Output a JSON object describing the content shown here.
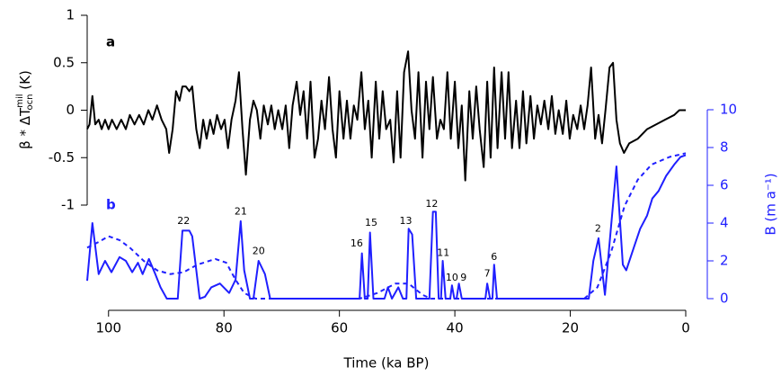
{
  "chart_data": [
    {
      "type": "line",
      "panel": "a",
      "ylabel": "β * ΔT",
      "ylabel_sup": "mil",
      "ylabel_sub": "ocn",
      "ylabel_unit": " (K)",
      "xlim": [
        103.7,
        0
      ],
      "ylim": [
        -1,
        1
      ],
      "yticks": [
        -1,
        -0.5,
        0,
        0.5,
        1
      ],
      "series": [
        {
          "color": "#000000",
          "x": [
            103.7,
            103.3,
            102.8,
            102.3,
            101.7,
            101.2,
            100.6,
            100.0,
            99.4,
            98.6,
            97.8,
            97.0,
            96.3,
            95.5,
            94.7,
            93.9,
            93.1,
            92.4,
            91.6,
            90.8,
            90.0,
            89.5,
            88.9,
            88.3,
            87.7,
            87.2,
            86.6,
            86.0,
            85.5,
            84.8,
            84.2,
            83.6,
            83.0,
            82.4,
            81.8,
            81.2,
            80.5,
            79.9,
            79.3,
            78.7,
            78.0,
            77.4,
            76.8,
            76.2,
            75.5,
            74.9,
            74.3,
            73.7,
            73.1,
            72.4,
            71.8,
            71.2,
            70.6,
            69.9,
            69.3,
            68.7,
            68.1,
            67.4,
            66.8,
            66.2,
            65.6,
            65.0,
            64.3,
            63.7,
            63.1,
            62.5,
            61.8,
            61.2,
            60.6,
            60.0,
            59.3,
            58.7,
            58.1,
            57.5,
            56.9,
            56.2,
            55.6,
            55.0,
            54.4,
            53.7,
            53.1,
            52.5,
            51.9,
            51.2,
            50.6,
            50.0,
            49.4,
            48.8,
            48.1,
            47.5,
            46.9,
            46.3,
            45.6,
            45.0,
            44.4,
            43.8,
            43.1,
            42.5,
            41.9,
            41.3,
            40.7,
            40.0,
            39.4,
            38.8,
            38.2,
            37.5,
            36.9,
            36.3,
            35.7,
            35.0,
            34.4,
            33.8,
            33.2,
            32.6,
            31.9,
            31.3,
            30.7,
            30.1,
            29.4,
            28.8,
            28.2,
            27.6,
            26.9,
            26.3,
            25.7,
            25.1,
            24.5,
            23.8,
            23.2,
            22.6,
            22.0,
            21.3,
            20.7,
            20.1,
            19.5,
            18.8,
            18.2,
            17.6,
            17.0,
            16.4,
            15.7,
            15.1,
            14.5,
            13.9,
            13.2,
            12.6,
            12.0,
            11.4,
            10.7,
            9.8,
            8.3,
            6.7,
            5.1,
            3.6,
            2.0,
            1.1,
            0
          ],
          "values": [
            -0.2,
            -0.15,
            0.15,
            -0.15,
            -0.1,
            -0.2,
            -0.1,
            -0.2,
            -0.1,
            -0.2,
            -0.1,
            -0.2,
            -0.05,
            -0.15,
            -0.05,
            -0.15,
            0.0,
            -0.1,
            0.05,
            -0.1,
            -0.2,
            -0.45,
            -0.2,
            0.2,
            0.1,
            0.25,
            0.25,
            0.2,
            0.25,
            -0.2,
            -0.4,
            -0.1,
            -0.3,
            -0.1,
            -0.25,
            -0.05,
            -0.2,
            -0.1,
            -0.4,
            -0.1,
            0.1,
            0.4,
            -0.2,
            -0.68,
            -0.1,
            0.1,
            0.0,
            -0.3,
            0.05,
            -0.15,
            0.05,
            -0.2,
            0.0,
            -0.2,
            0.05,
            -0.4,
            0.05,
            0.3,
            -0.05,
            0.2,
            -0.3,
            0.3,
            -0.5,
            -0.3,
            0.1,
            -0.2,
            0.35,
            -0.2,
            -0.5,
            0.2,
            -0.3,
            0.1,
            -0.3,
            0.05,
            -0.1,
            0.4,
            -0.2,
            0.1,
            -0.5,
            0.3,
            -0.3,
            0.2,
            -0.2,
            -0.1,
            -0.55,
            0.2,
            -0.5,
            0.4,
            0.62,
            0.0,
            -0.3,
            0.4,
            -0.5,
            0.3,
            -0.2,
            0.35,
            -0.3,
            -0.1,
            -0.2,
            0.4,
            -0.3,
            0.3,
            -0.4,
            0.05,
            -0.74,
            0.2,
            -0.3,
            0.25,
            -0.2,
            -0.6,
            0.3,
            -0.5,
            0.45,
            -0.4,
            0.4,
            -0.3,
            0.4,
            -0.4,
            0.1,
            -0.4,
            0.2,
            -0.35,
            0.15,
            -0.3,
            0.05,
            -0.15,
            0.1,
            -0.2,
            0.15,
            -0.25,
            0.0,
            -0.25,
            0.1,
            -0.3,
            -0.05,
            -0.2,
            0.05,
            -0.2,
            0.05,
            0.45,
            -0.3,
            -0.05,
            -0.35,
            0.0,
            0.45,
            0.5,
            -0.1,
            -0.35,
            -0.45,
            -0.35,
            -0.3,
            -0.2,
            -0.15,
            -0.1,
            -0.05,
            0.0,
            0.0
          ]
        }
      ]
    },
    {
      "type": "line",
      "panel": "b",
      "xlabel": "Time (ka BP)",
      "ylabel": "B (m a⁻¹)",
      "xlim": [
        103.7,
        0
      ],
      "xticks": [
        100,
        80,
        60,
        40,
        20,
        0
      ],
      "ylim": [
        0,
        10
      ],
      "yticks": [
        0,
        2,
        4,
        6,
        8,
        10
      ],
      "series": [
        {
          "color": "#1f1fff",
          "dashed": false,
          "x": [
            103.7,
            102.8,
            101.7,
            100.6,
            99.5,
            98.1,
            97.0,
            95.9,
            94.9,
            94.1,
            93.0,
            91.9,
            91.0,
            89.9,
            88.0,
            87.2,
            86.0,
            85.5,
            84.2,
            83.3,
            82.2,
            80.7,
            79.1,
            78.0,
            77.1,
            76.5,
            75.5,
            74.9,
            74.0,
            72.9,
            72.0,
            56.5,
            56.1,
            55.6,
            55.1,
            54.7,
            54.1,
            52.2,
            51.6,
            50.9,
            49.8,
            49.0,
            48.4,
            48.0,
            47.4,
            46.7,
            44.4,
            43.8,
            43.3,
            42.8,
            42.4,
            42.1,
            41.6,
            40.8,
            40.5,
            40.1,
            39.7,
            39.3,
            38.8,
            34.7,
            34.4,
            33.9,
            33.5,
            33.2,
            32.7,
            16.8,
            16.0,
            15.1,
            14.0,
            12.0,
            10.9,
            10.3,
            9.0,
            7.9,
            6.7,
            5.8,
            4.7,
            3.4,
            2.0,
            0.9,
            0
          ],
          "values": [
            0.95,
            4.0,
            1.3,
            2.0,
            1.4,
            2.2,
            2.0,
            1.4,
            1.9,
            1.3,
            2.1,
            1.3,
            0.6,
            0,
            0,
            3.6,
            3.6,
            3.3,
            0,
            0.1,
            0.6,
            0.8,
            0.3,
            1.0,
            4.1,
            1.5,
            0,
            0,
            2.0,
            1.3,
            0,
            0,
            2.4,
            0,
            0,
            3.5,
            0,
            0,
            0.6,
            0,
            0.6,
            0,
            0,
            3.7,
            3.4,
            0,
            0,
            4.6,
            4.6,
            0,
            0,
            2.0,
            0,
            0,
            0.7,
            0,
            0,
            0.8,
            0,
            0,
            0.8,
            0,
            0,
            1.8,
            0,
            0,
            2.0,
            3.2,
            0.2,
            7.0,
            1.8,
            1.5,
            2.7,
            3.7,
            4.4,
            5.3,
            5.7,
            6.5,
            7.1,
            7.5,
            7.6
          ]
        },
        {
          "color": "#1f1fff",
          "dashed": true,
          "x": [
            103.7,
            101.7,
            100.0,
            98.1,
            96.3,
            93.9,
            91.6,
            89.3,
            87.0,
            84.6,
            81.5,
            79.6,
            78.0,
            76.5,
            74.5,
            56.5,
            53.4,
            50.3,
            48.0,
            45.6,
            44.1,
            17.6,
            15.3,
            12.9,
            10.6,
            8.3,
            5.9,
            2.8,
            0
          ],
          "values": [
            2.7,
            3.0,
            3.3,
            3.1,
            2.7,
            2.0,
            1.5,
            1.3,
            1.4,
            1.8,
            2.1,
            1.9,
            1.0,
            0.3,
            0,
            0,
            0.3,
            0.8,
            0.8,
            0.2,
            0,
            0,
            0.6,
            2.5,
            4.9,
            6.3,
            7.1,
            7.5,
            7.7
          ]
        }
      ],
      "annotations": [
        {
          "text": "22",
          "x": 87.0,
          "y": 4.1
        },
        {
          "text": "21",
          "x": 77.1,
          "y": 4.6
        },
        {
          "text": "20",
          "x": 74.0,
          "y": 2.5
        },
        {
          "text": "16",
          "x": 57.0,
          "y": 2.9
        },
        {
          "text": "15",
          "x": 54.5,
          "y": 4.0
        },
        {
          "text": "13",
          "x": 48.5,
          "y": 4.1
        },
        {
          "text": "12",
          "x": 44.0,
          "y": 5.0
        },
        {
          "text": "11",
          "x": 42.0,
          "y": 2.4
        },
        {
          "text": "10",
          "x": 40.5,
          "y": 1.1
        },
        {
          "text": "9",
          "x": 38.5,
          "y": 1.1
        },
        {
          "text": "7",
          "x": 34.4,
          "y": 1.3
        },
        {
          "text": "6",
          "x": 33.2,
          "y": 2.2
        },
        {
          "text": "2",
          "x": 15.2,
          "y": 3.7
        }
      ]
    }
  ]
}
